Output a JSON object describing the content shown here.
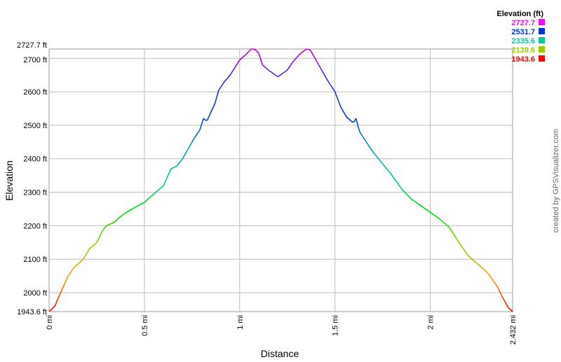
{
  "chart_data": {
    "type": "line",
    "xlabel": "Distance",
    "ylabel": "Elevation",
    "xlim": [
      0,
      2.432
    ],
    "ylim": [
      1943.6,
      2727.7
    ],
    "x_ticks": [
      {
        "value": 0,
        "label": "0 mi"
      },
      {
        "value": 0.5,
        "label": "0.5 mi"
      },
      {
        "value": 1,
        "label": "1 mi"
      },
      {
        "value": 1.5,
        "label": "1.5 mi"
      },
      {
        "value": 2,
        "label": "2 mi"
      },
      {
        "value": 2.432,
        "label": "2.432 mi"
      }
    ],
    "y_ticks": [
      {
        "value": 1943.6,
        "label": "1943.6 ft"
      },
      {
        "value": 2000,
        "label": "2000 ft"
      },
      {
        "value": 2100,
        "label": "2100 ft"
      },
      {
        "value": 2200,
        "label": "2200 ft"
      },
      {
        "value": 2300,
        "label": "2300 ft"
      },
      {
        "value": 2400,
        "label": "2400 ft"
      },
      {
        "value": 2500,
        "label": "2500 ft"
      },
      {
        "value": 2600,
        "label": "2600 ft"
      },
      {
        "value": 2700,
        "label": "2700 ft"
      },
      {
        "value": 2727.7,
        "label": "2727.7 ft"
      }
    ],
    "grid": true,
    "legend": {
      "title": "Elevation (ft)",
      "placement": "top-right",
      "entries": [
        {
          "label": "2727.7",
          "color": "#ff00ff"
        },
        {
          "label": "2531.7",
          "color": "#0033cc"
        },
        {
          "label": "2335.6",
          "color": "#00cc99"
        },
        {
          "label": "2139.6",
          "color": "#99cc00"
        },
        {
          "label": "1943.6",
          "color": "#ff0000"
        }
      ]
    },
    "color_scale": [
      {
        "value": 1943.6,
        "color": "#ff0000"
      },
      {
        "value": 2041.6,
        "color": "#ff9900"
      },
      {
        "value": 2139.6,
        "color": "#99cc00"
      },
      {
        "value": 2237.6,
        "color": "#00dd00"
      },
      {
        "value": 2335.6,
        "color": "#00cc99"
      },
      {
        "value": 2433.6,
        "color": "#0099cc"
      },
      {
        "value": 2531.7,
        "color": "#0033cc"
      },
      {
        "value": 2629.7,
        "color": "#3333cc"
      },
      {
        "value": 2727.7,
        "color": "#cc00cc"
      }
    ],
    "series": [
      {
        "x": [
          0,
          0.03,
          0.06,
          0.1,
          0.13,
          0.18,
          0.21,
          0.25,
          0.28,
          0.3,
          0.32,
          0.34,
          0.38,
          0.42,
          0.46,
          0.5,
          0.55,
          0.6,
          0.64,
          0.67,
          0.7,
          0.73,
          0.76,
          0.79,
          0.81,
          0.82,
          0.83,
          0.85,
          0.87,
          0.89,
          0.92,
          0.95,
          1.0,
          1.03,
          1.06,
          1.08,
          1.1,
          1.12,
          1.15,
          1.2,
          1.25,
          1.28,
          1.32,
          1.35,
          1.37,
          1.4,
          1.43,
          1.46,
          1.5,
          1.53,
          1.56,
          1.59,
          1.6,
          1.61,
          1.63,
          1.67,
          1.7,
          1.75,
          1.8,
          1.85,
          1.9,
          1.95,
          2.0,
          2.05,
          2.1,
          2.15,
          2.2,
          2.25,
          2.3,
          2.35,
          2.38,
          2.41,
          2.432
        ],
        "y": [
          1943.6,
          1960,
          2000,
          2050,
          2075,
          2100,
          2130,
          2150,
          2185,
          2200,
          2205,
          2210,
          2230,
          2245,
          2258,
          2270,
          2295,
          2320,
          2370,
          2378,
          2400,
          2430,
          2460,
          2485,
          2520,
          2515,
          2515,
          2540,
          2565,
          2605,
          2630,
          2650,
          2695,
          2710,
          2727.7,
          2727,
          2715,
          2680,
          2665,
          2645,
          2665,
          2690,
          2715,
          2727.7,
          2725,
          2695,
          2665,
          2635,
          2600,
          2555,
          2525,
          2510,
          2510,
          2520,
          2480,
          2445,
          2420,
          2385,
          2350,
          2310,
          2280,
          2260,
          2240,
          2220,
          2195,
          2150,
          2110,
          2085,
          2060,
          2020,
          1985,
          1955,
          1943.6
        ]
      }
    ]
  },
  "credit": "created by GPSVisualizer.com"
}
